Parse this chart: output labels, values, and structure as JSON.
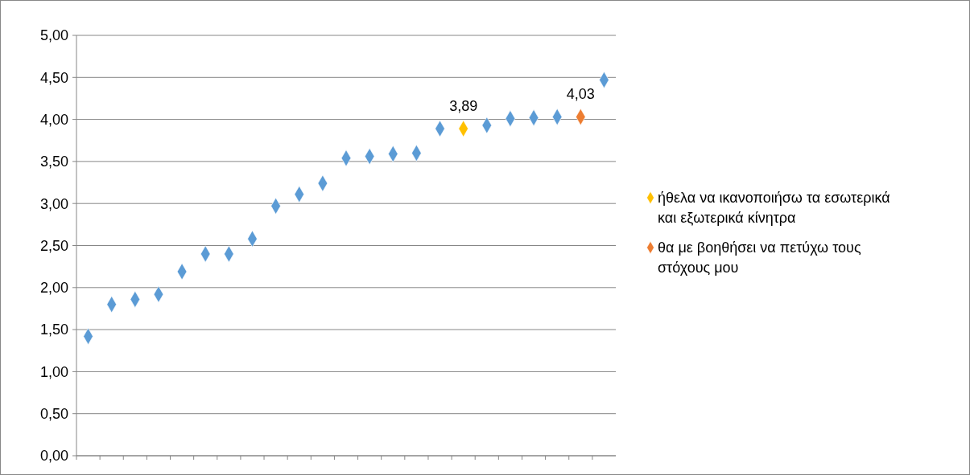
{
  "chart_data": {
    "type": "scatter",
    "categories": [
      null,
      null,
      null,
      null,
      null,
      null,
      null,
      null,
      null,
      null,
      null,
      null,
      null,
      null,
      null,
      null,
      null,
      null,
      null,
      null,
      null,
      null,
      null
    ],
    "series": [
      {
        "color": "#5b9bd5",
        "values": [
          1.42,
          1.8,
          1.86,
          1.92,
          2.19,
          2.4,
          2.4,
          2.58,
          2.97,
          3.11,
          3.24,
          3.54,
          3.56,
          3.59,
          3.6,
          3.89,
          null,
          3.93,
          4.01,
          4.02,
          4.03,
          null,
          4.47
        ]
      },
      {
        "name": "ήθελα να ικανοποιήσω τα εσωτερικά και εξωτερικά κίνητρα",
        "color": "#ffc000",
        "values": [
          null,
          null,
          null,
          null,
          null,
          null,
          null,
          null,
          null,
          null,
          null,
          null,
          null,
          null,
          null,
          null,
          3.89,
          null,
          null,
          null,
          null,
          null,
          null
        ],
        "value_labels": [
          null,
          null,
          null,
          null,
          null,
          null,
          null,
          null,
          null,
          null,
          null,
          null,
          null,
          null,
          null,
          null,
          "3,89",
          null,
          null,
          null,
          null,
          null,
          null
        ]
      },
      {
        "name": "θα με βοηθήσει να πετύχω τους στόχους μου",
        "color": "#ed7d31",
        "values": [
          null,
          null,
          null,
          null,
          null,
          null,
          null,
          null,
          null,
          null,
          null,
          null,
          null,
          null,
          null,
          null,
          null,
          null,
          null,
          null,
          null,
          4.03,
          null
        ],
        "value_labels": [
          null,
          null,
          null,
          null,
          null,
          null,
          null,
          null,
          null,
          null,
          null,
          null,
          null,
          null,
          null,
          null,
          null,
          null,
          null,
          null,
          null,
          "4,03",
          null
        ]
      }
    ],
    "ylim": [
      0,
      5
    ],
    "yticks": [
      {
        "value": 0,
        "label": "0,00"
      },
      {
        "value": 0.5,
        "label": "0,50"
      },
      {
        "value": 1,
        "label": "1,00"
      },
      {
        "value": 1.5,
        "label": "1,50"
      },
      {
        "value": 2,
        "label": "2,00"
      },
      {
        "value": 2.5,
        "label": "2,50"
      },
      {
        "value": 3,
        "label": "3,00"
      },
      {
        "value": 3.5,
        "label": "3,50"
      },
      {
        "value": 4,
        "label": "4,00"
      },
      {
        "value": 4.5,
        "label": "4,50"
      },
      {
        "value": 5,
        "label": "5,00"
      }
    ],
    "grid": "y",
    "legend": "right",
    "marker": "diamond"
  }
}
